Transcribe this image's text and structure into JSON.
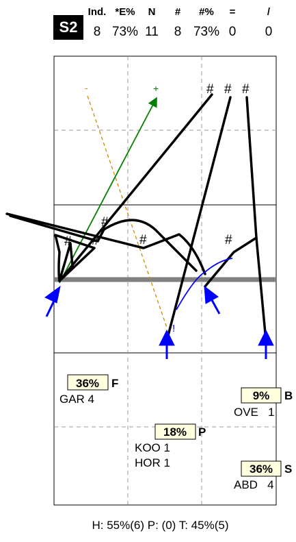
{
  "header": {
    "badge": "S2",
    "stats": [
      {
        "label": "Ind.",
        "value": "8"
      },
      {
        "label": "*E%",
        "value": "73%"
      },
      {
        "label": "N",
        "value": "11"
      },
      {
        "label": "#",
        "value": "8"
      },
      {
        "label": "#%",
        "value": "73%"
      },
      {
        "label": "=",
        "value": "0"
      },
      {
        "label": "/",
        "value": "0"
      }
    ]
  },
  "marks": {
    "hash": "#",
    "minus": "-",
    "plus": "+",
    "exclaim": "!"
  },
  "zones": [
    {
      "pct": "36%",
      "letter": "F",
      "players": [
        "GAR 4"
      ]
    },
    {
      "pct": "9%",
      "letter": "B",
      "players": [
        "OVE   1"
      ]
    },
    {
      "pct": "18%",
      "letter": "P",
      "players": [
        "KOO 1",
        "HOR 1"
      ]
    },
    {
      "pct": "36%",
      "letter": "S",
      "players": [
        "ABD   4"
      ]
    }
  ],
  "summary": "H: 55%(6)  P: (0)  T: 45%(5)",
  "colors": {
    "trajectory": "#000000",
    "arrow": "#0000ff",
    "net": "#808080",
    "plus_line": "#008000",
    "minus_line": "#cc8800",
    "blue_line": "#0000ff",
    "zone_label_bg": "#ffffe0"
  }
}
